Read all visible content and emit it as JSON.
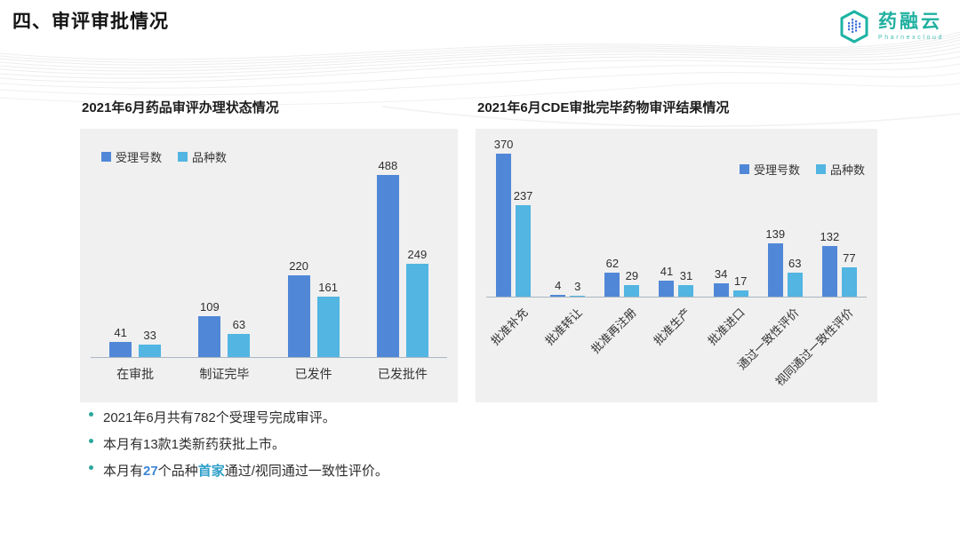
{
  "header": {
    "title": "四、审评审批情况",
    "logo": {
      "name": "药融云",
      "subtitle": "Pharnexcloud"
    }
  },
  "chart_data": [
    {
      "type": "bar",
      "title": "2021年6月药品审评办理状态情况",
      "categories": [
        "在审批",
        "制证完毕",
        "已发件",
        "已发批件"
      ],
      "series": [
        {
          "name": "受理号数",
          "color": "#5088d7",
          "values": [
            41,
            109,
            220,
            488
          ]
        },
        {
          "name": "品种数",
          "color": "#52b5e2",
          "values": [
            33,
            63,
            161,
            249
          ]
        }
      ],
      "ylim": [
        0,
        500
      ],
      "grid": false,
      "legend_position": "top-left",
      "xlabel_rotate": 0
    },
    {
      "type": "bar",
      "title": "2021年6月CDE审批完毕药物审评结果情况",
      "categories": [
        "批准补充",
        "批准转让",
        "批准再注册",
        "批准生产",
        "批准进口",
        "通过一致性评价",
        "视同通过一致性评价"
      ],
      "series": [
        {
          "name": "受理号数",
          "color": "#5088d7",
          "values": [
            370,
            4,
            62,
            41,
            34,
            139,
            132
          ]
        },
        {
          "name": "品种数",
          "color": "#52b5e2",
          "values": [
            237,
            3,
            29,
            31,
            17,
            63,
            77
          ]
        }
      ],
      "ylim": [
        0,
        380
      ],
      "grid": false,
      "legend_position": "right",
      "xlabel_rotate": 45
    }
  ],
  "bullets": {
    "items": [
      {
        "segments": [
          {
            "text": "2021年6月共有782个受理号完成审评。"
          }
        ]
      },
      {
        "segments": [
          {
            "text": "本月有13款1类新药获批上市。"
          }
        ]
      },
      {
        "segments": [
          {
            "text": "本月有"
          },
          {
            "text": "27",
            "color": "#3e86d6",
            "bold": true
          },
          {
            "text": "个品种"
          },
          {
            "text": "首家",
            "color": "#2f9fc9",
            "bold": true
          },
          {
            "text": "通过/视同通过一致性评价。"
          }
        ]
      }
    ]
  },
  "colors": {
    "series_1_blue": "#5088d7",
    "series_2_light_blue": "#52b5e2",
    "panel_background": "#f0f0f0",
    "axis_line": "#a9b6c2",
    "bullet_dot": "#2aa79b",
    "highlight_blue": "#3e86d6",
    "highlight_teal": "#2f9fc9",
    "brand_teal": "#1fb0a0",
    "title_text": "#141414"
  }
}
